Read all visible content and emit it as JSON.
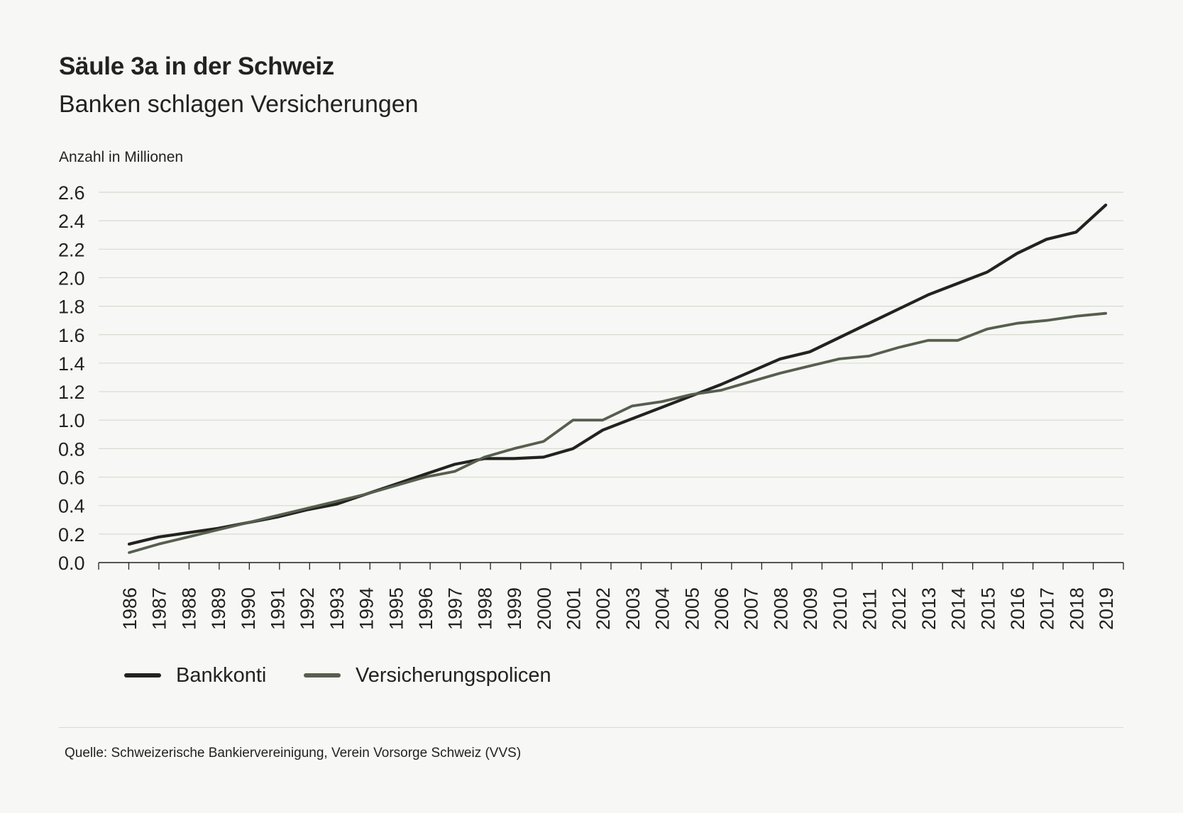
{
  "header": {
    "title": "Säule 3a in der Schweiz",
    "subtitle": "Banken schlagen Versicherungen",
    "y_unit": "Anzahl in Millionen"
  },
  "legend": {
    "items": [
      {
        "label": "Bankkonti",
        "color": "#22231f"
      },
      {
        "label": "Versicherungspolicen",
        "color": "#565f4d"
      }
    ],
    "placement": "bottom-left"
  },
  "source": "Quelle: Schweizerische Bankiervereinigung, Verein Vorsorge Schweiz (VVS)",
  "colors": {
    "background": "#f7f7f6",
    "gridline": "#d7dccb",
    "axis": "#22231f"
  },
  "chart_data": {
    "type": "line",
    "title": "Säule 3a in der Schweiz",
    "subtitle": "Banken schlagen Versicherungen",
    "ylabel": "Anzahl in Millionen",
    "xlabel": "",
    "ylim": [
      0,
      2.6
    ],
    "yticks": [
      "0.0",
      "0.2",
      "0.4",
      "0.6",
      "0.8",
      "1.0",
      "1.2",
      "1.4",
      "1.6",
      "1.8",
      "2.0",
      "2.2",
      "2.4",
      "2.6"
    ],
    "grid": true,
    "categories": [
      "1986",
      "1987",
      "1988",
      "1989",
      "1990",
      "1991",
      "1992",
      "1993",
      "1994",
      "1995",
      "1996",
      "1997",
      "1998",
      "1999",
      "2000",
      "2001",
      "2002",
      "2003",
      "2004",
      "2005",
      "2006",
      "2007",
      "2008",
      "2009",
      "2010",
      "2011",
      "2012",
      "2013",
      "2014",
      "2015",
      "2016",
      "2017",
      "2018",
      "2019"
    ],
    "series": [
      {
        "name": "Bankkonti",
        "color": "#22231f",
        "values": [
          0.13,
          0.18,
          0.21,
          0.24,
          0.28,
          0.32,
          0.37,
          0.41,
          0.48,
          0.55,
          0.62,
          0.69,
          0.73,
          0.73,
          0.74,
          0.8,
          0.93,
          1.01,
          1.09,
          1.17,
          1.25,
          1.34,
          1.43,
          1.48,
          1.58,
          1.68,
          1.78,
          1.88,
          1.96,
          2.04,
          2.17,
          2.27,
          2.32,
          2.51
        ]
      },
      {
        "name": "Versicherungspolicen",
        "color": "#565f4d",
        "values": [
          0.07,
          0.13,
          0.18,
          0.23,
          0.28,
          0.33,
          0.38,
          0.43,
          0.48,
          0.54,
          0.6,
          0.64,
          0.74,
          0.8,
          0.85,
          1.0,
          1.0,
          1.1,
          1.13,
          1.18,
          1.21,
          1.27,
          1.33,
          1.38,
          1.43,
          1.45,
          1.51,
          1.56,
          1.56,
          1.64,
          1.68,
          1.7,
          1.73,
          1.75
        ]
      }
    ]
  }
}
